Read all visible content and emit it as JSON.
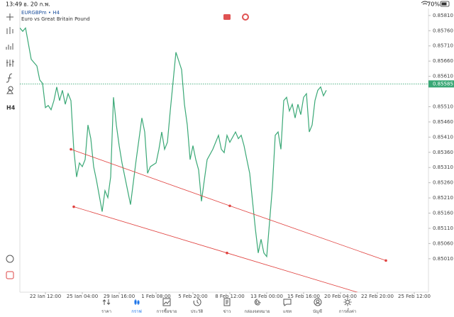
{
  "status_bar": {
    "time": "13:49",
    "date": "อ. 20 ก.พ.",
    "battery": "70%"
  },
  "toolbar": {
    "timeframe": "H4"
  },
  "chart_data": {
    "type": "line",
    "title": "EURGBPm • H4",
    "subtitle": "Euro vs Great Britain Pound",
    "color": "#3aa876",
    "x": [
      0,
      1,
      2,
      4,
      6,
      7,
      8,
      9,
      10,
      11,
      12,
      13,
      14,
      15,
      16,
      17,
      18,
      19,
      20,
      21,
      22,
      23,
      24,
      25,
      26,
      27,
      29,
      30,
      31,
      32,
      33,
      34,
      35,
      36,
      39,
      41,
      43,
      44,
      45,
      46,
      48,
      49,
      50,
      51,
      52,
      53,
      55,
      57,
      58,
      59,
      60,
      61,
      62,
      63,
      64,
      65,
      66,
      68,
      70,
      71,
      72,
      73,
      74,
      76,
      77,
      78,
      79,
      80,
      81,
      82,
      83,
      84,
      85,
      86,
      87,
      88,
      89,
      90,
      91,
      92,
      93,
      94,
      95,
      96,
      97,
      98,
      99,
      100,
      101,
      102,
      103,
      104,
      105,
      106,
      107,
      108
    ],
    "values": [
      0.85769,
      0.85758,
      0.85769,
      0.85666,
      0.85644,
      0.85598,
      0.85587,
      0.85507,
      0.85514,
      0.855,
      0.8553,
      0.85575,
      0.8553,
      0.85564,
      0.85518,
      0.85553,
      0.8553,
      0.8537,
      0.85279,
      0.85325,
      0.85313,
      0.85336,
      0.8545,
      0.85405,
      0.85313,
      0.85268,
      0.85165,
      0.85234,
      0.85211,
      0.85279,
      0.85541,
      0.8545,
      0.85382,
      0.85325,
      0.85188,
      0.85336,
      0.85473,
      0.85427,
      0.85291,
      0.85313,
      0.85325,
      0.8537,
      0.85427,
      0.8537,
      0.85393,
      0.85496,
      0.85689,
      0.85632,
      0.85518,
      0.8545,
      0.85336,
      0.85382,
      0.85336,
      0.85302,
      0.85199,
      0.85268,
      0.85336,
      0.8537,
      0.85416,
      0.8537,
      0.85359,
      0.85416,
      0.85393,
      0.85427,
      0.85405,
      0.85416,
      0.85382,
      0.85336,
      0.85291,
      0.85199,
      0.85108,
      0.85029,
      0.85074,
      0.85029,
      0.85017,
      0.85131,
      0.85245,
      0.85416,
      0.85427,
      0.8537,
      0.8553,
      0.85541,
      0.85496,
      0.85518,
      0.85473,
      0.85518,
      0.85484,
      0.85541,
      0.85553,
      0.85427,
      0.8545,
      0.8553,
      0.85564,
      0.85575,
      0.85546,
      0.85564
    ],
    "xlim": [
      0,
      144
    ],
    "ylim": [
      0.849,
      0.85833
    ],
    "xticks": [
      {
        "value": 9,
        "label": "22 Jan 12:00"
      },
      {
        "value": 22,
        "label": "25 Jan 04:00"
      },
      {
        "value": 35,
        "label": "29 Jan 16:00"
      },
      {
        "value": 48,
        "label": "1 Feb 08:00"
      },
      {
        "value": 61,
        "label": "5 Feb 20:00"
      },
      {
        "value": 74,
        "label": "8 Feb 12:00"
      },
      {
        "value": 87,
        "label": "13 Feb 00:00"
      },
      {
        "value": 100,
        "label": "15 Feb 16:00"
      },
      {
        "value": 113,
        "label": "20 Feb 04:00"
      },
      {
        "value": 126,
        "label": "22 Feb 20:00"
      },
      {
        "value": 139,
        "label": "25 Feb 12:00"
      }
    ],
    "yticks": [
      {
        "value": 0.8581,
        "label": "0.85810"
      },
      {
        "value": 0.8576,
        "label": "0.85760"
      },
      {
        "value": 0.8571,
        "label": "0.85710"
      },
      {
        "value": 0.8566,
        "label": "0.85660"
      },
      {
        "value": 0.8561,
        "label": "0.85610"
      },
      {
        "value": 0.8551,
        "label": "0.85510"
      },
      {
        "value": 0.8546,
        "label": "0.85460"
      },
      {
        "value": 0.8541,
        "label": "0.85410"
      },
      {
        "value": 0.8536,
        "label": "0.85360"
      },
      {
        "value": 0.8531,
        "label": "0.85310"
      },
      {
        "value": 0.8526,
        "label": "0.85260"
      },
      {
        "value": 0.8521,
        "label": "0.85210"
      },
      {
        "value": 0.8516,
        "label": "0.85160"
      },
      {
        "value": 0.8511,
        "label": "0.85110"
      },
      {
        "value": 0.8506,
        "label": "0.85060"
      },
      {
        "value": 0.8501,
        "label": "0.85010"
      }
    ],
    "current_price": {
      "value": 0.85585,
      "label": "0.85585"
    },
    "trendlines": [
      {
        "color": "#e0413e",
        "x": [
          18,
          74,
          129
        ],
        "values": [
          0.8537,
          0.85184,
          0.85004
        ],
        "extend_right": false
      },
      {
        "color": "#e0413e",
        "x": [
          19,
          73
        ],
        "values": [
          0.85181,
          0.85029
        ],
        "extend_right": true
      }
    ]
  },
  "nav": [
    "ราคา",
    "กราฟ",
    "การซื้อขาย",
    "ประวัติ",
    "ข่าว",
    "กล่องจดหมาย",
    "แชท",
    "บัญชี",
    "การตั้งค่า"
  ],
  "nav_active": 1
}
